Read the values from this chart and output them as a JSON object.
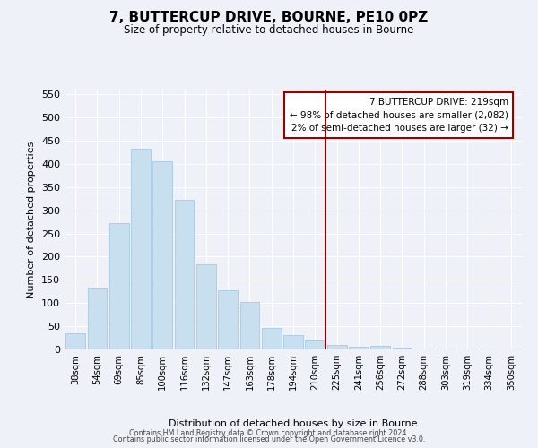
{
  "title": "7, BUTTERCUP DRIVE, BOURNE, PE10 0PZ",
  "subtitle": "Size of property relative to detached houses in Bourne",
  "xlabel": "Distribution of detached houses by size in Bourne",
  "ylabel": "Number of detached properties",
  "bar_labels": [
    "38sqm",
    "54sqm",
    "69sqm",
    "85sqm",
    "100sqm",
    "116sqm",
    "132sqm",
    "147sqm",
    "163sqm",
    "178sqm",
    "194sqm",
    "210sqm",
    "225sqm",
    "241sqm",
    "256sqm",
    "272sqm",
    "288sqm",
    "303sqm",
    "319sqm",
    "334sqm",
    "350sqm"
  ],
  "bar_values": [
    35,
    133,
    272,
    432,
    405,
    322,
    183,
    128,
    103,
    46,
    30,
    20,
    9,
    5,
    8,
    3,
    2,
    2,
    1,
    1,
    2
  ],
  "bar_color": "#c8dff0",
  "bar_edge_color": "#a8c8e0",
  "vline_color": "#990000",
  "annotation_title": "7 BUTTERCUP DRIVE: 219sqm",
  "annotation_line1": "← 98% of detached houses are smaller (2,082)",
  "annotation_line2": "2% of semi-detached houses are larger (32) →",
  "annotation_box_color": "#ffffff",
  "annotation_box_edge": "#990000",
  "background_color": "#eef2f8",
  "grid_color": "#ffffff",
  "ylim": [
    0,
    560
  ],
  "yticks": [
    0,
    50,
    100,
    150,
    200,
    250,
    300,
    350,
    400,
    450,
    500,
    550
  ],
  "footer1": "Contains HM Land Registry data © Crown copyright and database right 2024.",
  "footer2": "Contains public sector information licensed under the Open Government Licence v3.0."
}
